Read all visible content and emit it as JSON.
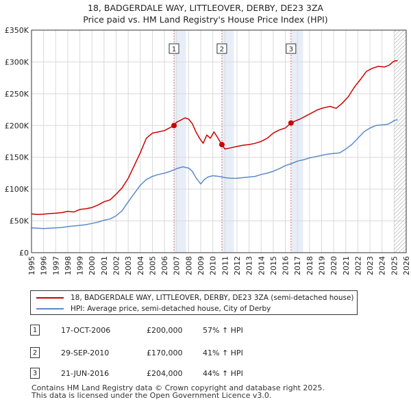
{
  "title_line1": "18, BADGERDALE WAY, LITTLEOVER, DERBY, DE23 3ZA",
  "title_line2": "Price paid vs. HM Land Registry's House Price Index (HPI)",
  "chart_data": {
    "type": "line",
    "x_ticks": [
      1995,
      1996,
      1997,
      1998,
      1999,
      2000,
      2001,
      2002,
      2003,
      2004,
      2005,
      2006,
      2007,
      2008,
      2009,
      2010,
      2011,
      2012,
      2013,
      2014,
      2015,
      2016,
      2017,
      2018,
      2019,
      2020,
      2021,
      2022,
      2023,
      2024,
      2025,
      2026
    ],
    "xlim": [
      1995,
      2026
    ],
    "ylim": [
      0,
      350000
    ],
    "y_ticks": [
      0,
      50000,
      100000,
      150000,
      200000,
      250000,
      300000,
      350000
    ],
    "y_tick_labels": [
      "£0",
      "£50K",
      "£100K",
      "£150K",
      "£200K",
      "£250K",
      "£300K",
      "£350K"
    ],
    "grid": true,
    "legend_position": "below",
    "series": [
      {
        "name": "18, BADGERDALE WAY, LITTLEOVER, DERBY, DE23 3ZA (semi-detached house)",
        "color": "#cc0000",
        "x": [
          1995,
          1995.5,
          1996,
          1996.5,
          1997,
          1997.5,
          1998,
          1998.5,
          1999,
          1999.5,
          2000,
          2000.5,
          2001,
          2001.5,
          2002,
          2002.5,
          2003,
          2003.5,
          2004,
          2004.5,
          2005,
          2005.5,
          2006,
          2006.5,
          2006.8,
          2007,
          2007.3,
          2007.7,
          2008,
          2008.3,
          2008.6,
          2008.9,
          2009.2,
          2009.5,
          2009.8,
          2010.1,
          2010.4,
          2010.74,
          2011,
          2011.5,
          2012,
          2012.5,
          2013,
          2013.5,
          2014,
          2014.5,
          2015,
          2015.5,
          2016,
          2016.47,
          2016.8,
          2017.2,
          2017.7,
          2018.2,
          2018.7,
          2019.2,
          2019.7,
          2020.2,
          2020.7,
          2021.2,
          2021.7,
          2022.2,
          2022.7,
          2023.2,
          2023.7,
          2024.2,
          2024.6,
          2024.9,
          2025.1,
          2025.3
        ],
        "values": [
          61000,
          60000,
          60500,
          61500,
          62000,
          63000,
          65000,
          64000,
          68000,
          69000,
          71000,
          75000,
          80000,
          83000,
          92000,
          102000,
          117000,
          137000,
          157000,
          180000,
          188000,
          190000,
          192000,
          197000,
          200000,
          205000,
          208000,
          212000,
          210000,
          203000,
          190000,
          180000,
          172000,
          185000,
          180000,
          190000,
          181000,
          170000,
          163000,
          165000,
          167000,
          169000,
          170000,
          172000,
          175000,
          180000,
          188000,
          193000,
          196000,
          204000,
          207000,
          210000,
          215000,
          220000,
          225000,
          228000,
          230000,
          227000,
          235000,
          245000,
          260000,
          272000,
          285000,
          290000,
          293000,
          292000,
          295000,
          300000,
          302000,
          302000
        ],
        "marker": "none"
      },
      {
        "name": "HPI: Average price, semi-detached house, City of Derby",
        "color": "#5b8ac7",
        "x": [
          1995,
          1995.5,
          1996,
          1996.5,
          1997,
          1997.5,
          1998,
          1998.5,
          1999,
          1999.5,
          2000,
          2000.5,
          2001,
          2001.5,
          2002,
          2002.5,
          2003,
          2003.5,
          2004,
          2004.5,
          2005,
          2005.5,
          2006,
          2006.5,
          2007,
          2007.5,
          2008,
          2008.3,
          2008.6,
          2009,
          2009.3,
          2009.6,
          2010,
          2010.5,
          2011,
          2011.5,
          2012,
          2012.5,
          2013,
          2013.5,
          2014,
          2014.5,
          2015,
          2015.5,
          2016,
          2016.5,
          2017,
          2017.5,
          2018,
          2018.5,
          2019,
          2019.5,
          2020,
          2020.5,
          2021,
          2021.5,
          2022,
          2022.5,
          2023,
          2023.5,
          2024,
          2024.5,
          2024.8,
          2025,
          2025.3
        ],
        "values": [
          39000,
          38500,
          38000,
          38500,
          39000,
          39500,
          41000,
          42000,
          43000,
          44000,
          46000,
          48000,
          51000,
          53000,
          58000,
          66000,
          80000,
          93000,
          106000,
          115000,
          120000,
          123000,
          125000,
          128000,
          132000,
          135000,
          133000,
          128000,
          118000,
          108000,
          115000,
          119000,
          121000,
          120000,
          118000,
          117000,
          117000,
          118000,
          119000,
          120000,
          123000,
          125000,
          128000,
          132000,
          137000,
          140000,
          144000,
          146000,
          149000,
          151000,
          153000,
          155000,
          156000,
          157000,
          163000,
          170000,
          180000,
          190000,
          196000,
          200000,
          201000,
          202000,
          205000,
          208000,
          209000
        ],
        "marker": "none"
      }
    ],
    "sales": [
      {
        "label": "1",
        "x": 2006.79,
        "y": 200000
      },
      {
        "label": "2",
        "x": 2010.75,
        "y": 170000
      },
      {
        "label": "3",
        "x": 2016.47,
        "y": 204000
      }
    ],
    "hatch_after": 2025.0
  },
  "legend": {
    "property_label": "18, BADGERDALE WAY, LITTLEOVER, DERBY, DE23 3ZA (semi-detached house)",
    "hpi_label": "HPI: Average price, semi-detached house, City of Derby"
  },
  "transactions": [
    {
      "num": "1",
      "date": "17-OCT-2006",
      "price": "£200,000",
      "hpi": "57% ↑ HPI"
    },
    {
      "num": "2",
      "date": "29-SEP-2010",
      "price": "£170,000",
      "hpi": "41% ↑ HPI"
    },
    {
      "num": "3",
      "date": "21-JUN-2016",
      "price": "£204,000",
      "hpi": "44% ↑ HPI"
    }
  ],
  "footer_line1": "Contains HM Land Registry data © Crown copyright and database right 2025.",
  "footer_line2": "This data is licensed under the Open Government Licence v3.0.",
  "colors": {
    "property": "#cc0000",
    "hpi": "#5b8ac7",
    "highlight": "#e8eef8"
  }
}
